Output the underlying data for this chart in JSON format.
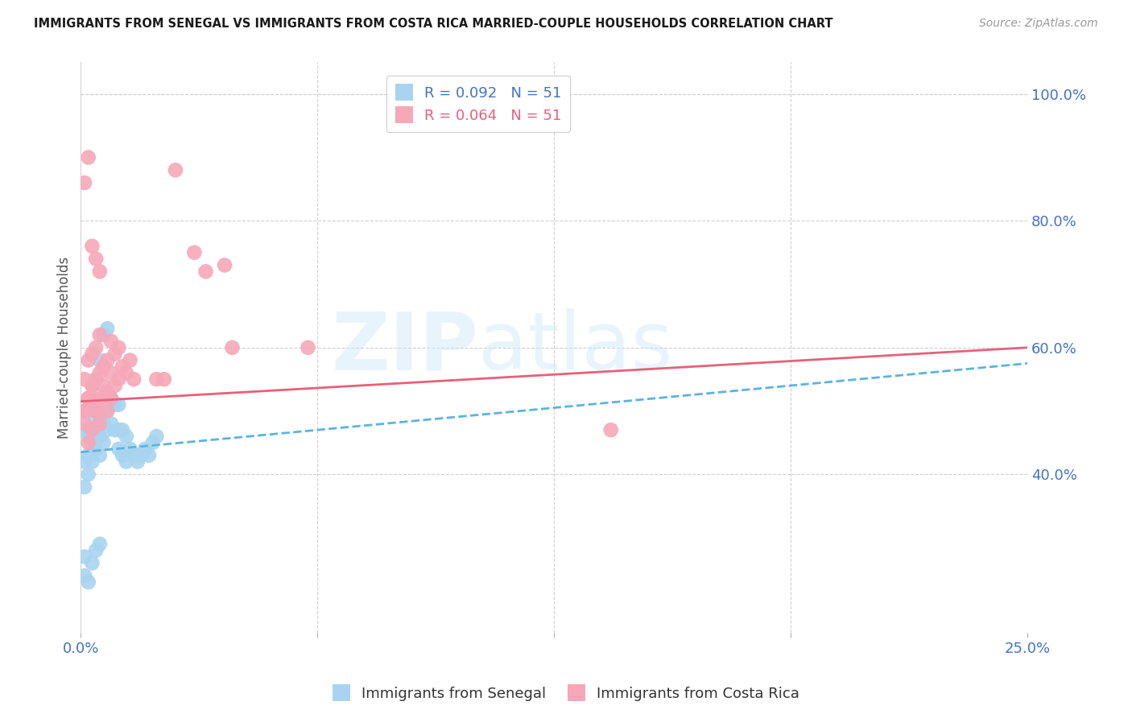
{
  "title": "IMMIGRANTS FROM SENEGAL VS IMMIGRANTS FROM COSTA RICA MARRIED-COUPLE HOUSEHOLDS CORRELATION CHART",
  "source": "Source: ZipAtlas.com",
  "ylabel": "Married-couple Households",
  "watermark_line1": "ZIP",
  "watermark_line2": "atlas",
  "legend_r_senegal": "R = 0.092",
  "legend_n_senegal": "N = 51",
  "legend_r_costarica": "R = 0.064",
  "legend_n_costarica": "N = 51",
  "senegal_color": "#a8d4f0",
  "costarica_color": "#f5a8b8",
  "senegal_line_color": "#5ab4e0",
  "costarica_line_color": "#e8607a",
  "text_color_blue": "#4472c4",
  "text_color_pink": "#e8607a",
  "background_color": "#ffffff",
  "grid_color": "#d0d0d0",
  "xlim": [
    0.0,
    0.25
  ],
  "ylim": [
    0.15,
    1.05
  ],
  "xticks": [
    0.0,
    0.0625,
    0.125,
    0.1875,
    0.25
  ],
  "xtick_labels": [
    "0.0%",
    "",
    "",
    "",
    "25.0%"
  ],
  "yticks_right": [
    0.4,
    0.6,
    0.8,
    1.0
  ],
  "ytick_labels_right": [
    "40.0%",
    "60.0%",
    "80.0%",
    "100.0%"
  ],
  "senegal_x": [
    0.001,
    0.001,
    0.001,
    0.002,
    0.002,
    0.002,
    0.002,
    0.003,
    0.003,
    0.003,
    0.003,
    0.004,
    0.004,
    0.004,
    0.004,
    0.005,
    0.005,
    0.005,
    0.005,
    0.006,
    0.006,
    0.006,
    0.007,
    0.007,
    0.007,
    0.008,
    0.008,
    0.009,
    0.009,
    0.01,
    0.01,
    0.01,
    0.011,
    0.011,
    0.012,
    0.012,
    0.013,
    0.014,
    0.015,
    0.016,
    0.001,
    0.001,
    0.002,
    0.003,
    0.004,
    0.005,
    0.015,
    0.017,
    0.018,
    0.019,
    0.02
  ],
  "senegal_y": [
    0.38,
    0.42,
    0.47,
    0.4,
    0.43,
    0.46,
    0.5,
    0.42,
    0.45,
    0.48,
    0.52,
    0.44,
    0.47,
    0.5,
    0.55,
    0.43,
    0.46,
    0.49,
    0.58,
    0.45,
    0.48,
    0.62,
    0.47,
    0.5,
    0.63,
    0.48,
    0.52,
    0.47,
    0.51,
    0.44,
    0.47,
    0.51,
    0.43,
    0.47,
    0.42,
    0.46,
    0.44,
    0.43,
    0.42,
    0.43,
    0.24,
    0.27,
    0.23,
    0.26,
    0.28,
    0.29,
    0.43,
    0.44,
    0.43,
    0.45,
    0.46
  ],
  "costarica_x": [
    0.001,
    0.001,
    0.001,
    0.002,
    0.002,
    0.002,
    0.003,
    0.003,
    0.003,
    0.004,
    0.004,
    0.004,
    0.005,
    0.005,
    0.005,
    0.006,
    0.006,
    0.007,
    0.007,
    0.008,
    0.008,
    0.009,
    0.009,
    0.01,
    0.01,
    0.011,
    0.012,
    0.013,
    0.014,
    0.02,
    0.001,
    0.002,
    0.003,
    0.004,
    0.005,
    0.006,
    0.007,
    0.008,
    0.04,
    0.06,
    0.001,
    0.002,
    0.003,
    0.004,
    0.005,
    0.022,
    0.025,
    0.03,
    0.033,
    0.038,
    0.14
  ],
  "costarica_y": [
    0.5,
    0.55,
    0.48,
    0.52,
    0.58,
    0.45,
    0.54,
    0.59,
    0.47,
    0.55,
    0.6,
    0.5,
    0.56,
    0.62,
    0.48,
    0.57,
    0.52,
    0.58,
    0.53,
    0.56,
    0.61,
    0.54,
    0.59,
    0.55,
    0.6,
    0.57,
    0.56,
    0.58,
    0.55,
    0.55,
    0.5,
    0.52,
    0.54,
    0.5,
    0.52,
    0.54,
    0.5,
    0.52,
    0.6,
    0.6,
    0.86,
    0.9,
    0.76,
    0.74,
    0.72,
    0.55,
    0.88,
    0.75,
    0.72,
    0.73,
    0.47
  ]
}
